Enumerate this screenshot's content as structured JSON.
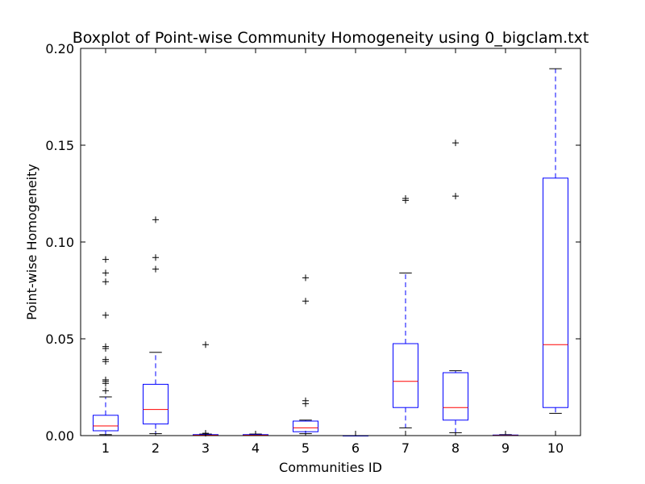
{
  "chart_data": {
    "type": "boxplot",
    "title": "Boxplot of Point-wise Community Homogeneity using 0_bigclam.txt",
    "xlabel": "Communities ID",
    "ylabel": "Point-wise Homogeneity",
    "ylim": [
      0,
      0.2
    ],
    "y_ticks": [
      "0.00",
      "0.05",
      "0.10",
      "0.15",
      "0.20"
    ],
    "y_tick_values": [
      0,
      0.05,
      0.1,
      0.15,
      0.2
    ],
    "grid": false,
    "legend": "none",
    "colors": {
      "box": "#0000ff",
      "median": "#ff0000",
      "flier": "#000000",
      "cap": "#000000"
    },
    "boxes": [
      {
        "label": "1",
        "whisker_low": 0.0005,
        "q1": 0.0025,
        "median": 0.005,
        "q3": 0.0105,
        "whisker_high": 0.02,
        "outliers": [
          0.0232,
          0.027,
          0.028,
          0.0288,
          0.0383,
          0.0393,
          0.045,
          0.046,
          0.0622,
          0.0795,
          0.084,
          0.091
        ]
      },
      {
        "label": "2",
        "whisker_low": 0.001,
        "q1": 0.006,
        "median": 0.0135,
        "q3": 0.0265,
        "whisker_high": 0.043,
        "outliers": [
          0.086,
          0.092,
          0.1115
        ]
      },
      {
        "label": "3",
        "whisker_low": 0.0,
        "q1": 0.0,
        "median": 0.0002,
        "q3": 0.0005,
        "whisker_high": 0.0008,
        "outliers": [
          0.0012,
          0.047
        ]
      },
      {
        "label": "4",
        "whisker_low": 0.0,
        "q1": 0.0,
        "median": 0.0002,
        "q3": 0.0005,
        "whisker_high": 0.0008,
        "outliers": []
      },
      {
        "label": "5",
        "whisker_low": 0.001,
        "q1": 0.002,
        "median": 0.004,
        "q3": 0.0075,
        "whisker_high": 0.008,
        "outliers": [
          0.0165,
          0.018,
          0.0695,
          0.0815
        ]
      },
      {
        "label": "6",
        "whisker_low": 0.0,
        "q1": 0.0,
        "median": 0.0,
        "q3": 0.0,
        "whisker_high": 0.0,
        "outliers": []
      },
      {
        "label": "7",
        "whisker_low": 0.004,
        "q1": 0.0145,
        "median": 0.028,
        "q3": 0.0475,
        "whisker_high": 0.084,
        "outliers": [
          0.1215,
          0.1225
        ]
      },
      {
        "label": "8",
        "whisker_low": 0.0015,
        "q1": 0.008,
        "median": 0.0145,
        "q3": 0.0325,
        "whisker_high": 0.0335,
        "outliers": [
          0.1237,
          0.1512
        ]
      },
      {
        "label": "9",
        "whisker_low": 0.0,
        "q1": 0.0,
        "median": 0.0001,
        "q3": 0.0003,
        "whisker_high": 0.0005,
        "outliers": []
      },
      {
        "label": "10",
        "whisker_low": 0.0115,
        "q1": 0.0145,
        "median": 0.047,
        "q3": 0.133,
        "whisker_high": 0.1895,
        "outliers": []
      }
    ]
  }
}
